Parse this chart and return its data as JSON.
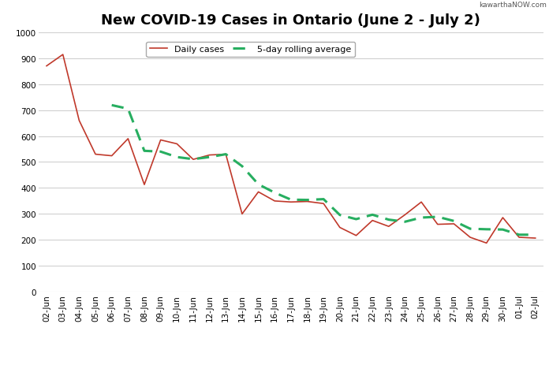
{
  "title": "New COVID-19 Cases in Ontario (June 2 - July 2)",
  "watermark": "kawarthaNOW.com",
  "dates": [
    "02-Jun",
    "03-Jun",
    "04-Jun",
    "05-Jun",
    "06-Jun",
    "07-Jun",
    "08-Jun",
    "09-Jun",
    "10-Jun",
    "11-Jun",
    "12-Jun",
    "13-Jun",
    "14-Jun",
    "15-Jun",
    "16-Jun",
    "17-Jun",
    "18-Jun",
    "19-Jun",
    "20-Jun",
    "21-Jun",
    "22-Jun",
    "23-Jun",
    "24-Jun",
    "25-Jun",
    "26-Jun",
    "27-Jun",
    "28-Jun",
    "29-Jun",
    "30-Jun",
    "01-Jul",
    "02-Jul"
  ],
  "daily_cases": [
    870,
    914,
    660,
    530,
    524,
    590,
    413,
    585,
    570,
    510,
    527,
    530,
    300,
    385,
    350,
    346,
    348,
    340,
    248,
    217,
    275,
    252,
    297,
    346,
    260,
    262,
    210,
    188,
    286,
    210,
    207
  ],
  "rolling_avg": [
    null,
    null,
    null,
    null,
    719,
    705,
    543,
    540,
    519,
    511,
    519,
    530,
    484,
    414,
    382,
    355,
    354,
    357,
    296,
    280,
    297,
    278,
    270,
    286,
    289,
    273,
    243,
    241,
    240,
    220,
    220
  ],
  "daily_color": "#c0392b",
  "rolling_color": "#27ae60",
  "legend_daily": "Daily cases",
  "legend_rolling": "5-day rolling average",
  "ylim": [
    0,
    1000
  ],
  "yticks": [
    0,
    100,
    200,
    300,
    400,
    500,
    600,
    700,
    800,
    900,
    1000
  ],
  "bg_color": "#ffffff",
  "grid_color": "#d0d0d0",
  "title_fontsize": 13,
  "tick_fontsize": 7.5,
  "legend_fontsize": 8
}
